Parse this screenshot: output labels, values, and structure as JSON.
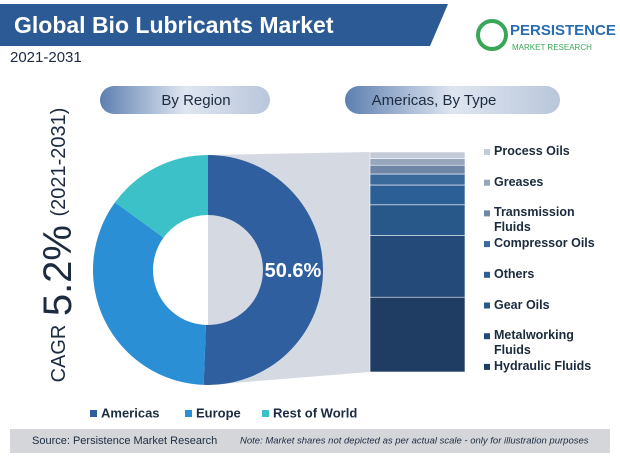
{
  "header": {
    "title": "Global Bio Lubricants Market",
    "subtitle": "2021-2031",
    "logo_name": "PERSISTENCE",
    "logo_tagline": "MARKET RESEARCH"
  },
  "cagr": {
    "label": "CAGR",
    "value": "5.2%",
    "period": "(2021-2031)"
  },
  "chart_data": [
    {
      "type": "pie",
      "title": "By Region",
      "categories": [
        "Americas",
        "Europe",
        "Rest of World"
      ],
      "values": [
        50.6,
        34.4,
        15
      ],
      "value_labels": [
        "50.6%",
        null,
        null
      ],
      "colors": [
        "#2f5f9f",
        "#2a8fd4",
        "#3cc1c8"
      ]
    },
    {
      "type": "stacked-bar",
      "title": "Americas, By Type",
      "categories": [
        "Process Oils",
        "Greases",
        "Transmission Fluids",
        "Compressor Oils",
        "Others",
        "Gear Oils",
        "Metalworking Fluids",
        "Hydraulic Fluids"
      ],
      "values": [
        3,
        3,
        4,
        5,
        9,
        14,
        28,
        34
      ],
      "colors": [
        "#c3cad8",
        "#97a6bd",
        "#6f86a6",
        "#3a6a9c",
        "#2b5f96",
        "#28578a",
        "#234a78",
        "#1f3c63"
      ]
    }
  ],
  "footer": {
    "source": "Source: Persistence Market Research",
    "note": "Note: Market shares not depicted as per actual scale - only for illustration purposes"
  }
}
